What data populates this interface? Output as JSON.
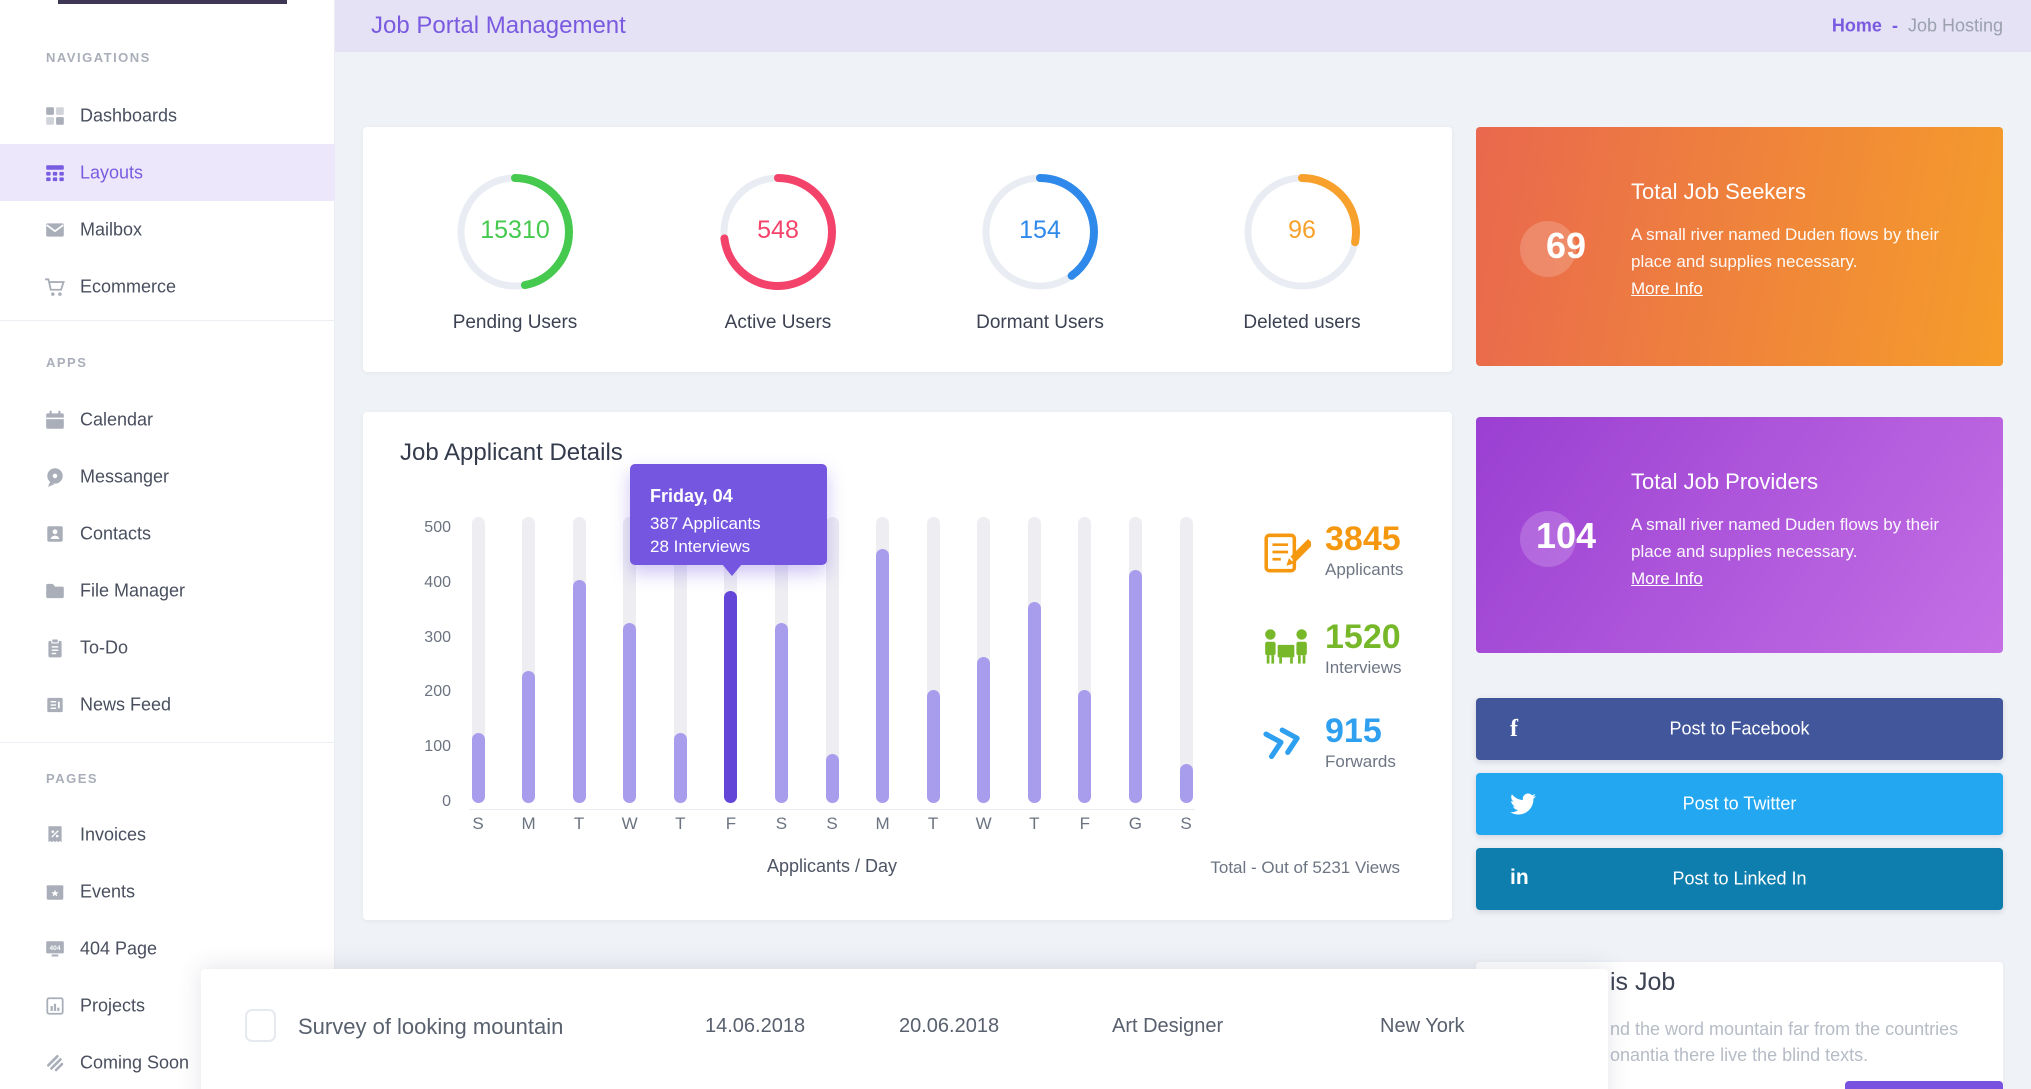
{
  "header": {
    "title": "Job Portal Management",
    "breadcrumb": {
      "home": "Home",
      "separator": "-",
      "current": "Job Hosting"
    }
  },
  "sidebar": {
    "sections": [
      {
        "label": "NAVIGATIONS",
        "items": [
          {
            "label": "Dashboards",
            "icon": "dashboards-icon",
            "active": false
          },
          {
            "label": "Layouts",
            "icon": "layouts-icon",
            "active": true
          },
          {
            "label": "Mailbox",
            "icon": "mailbox-icon",
            "active": false
          },
          {
            "label": "Ecommerce",
            "icon": "ecommerce-icon",
            "active": false
          }
        ]
      },
      {
        "label": "APPS",
        "items": [
          {
            "label": "Calendar",
            "icon": "calendar-icon"
          },
          {
            "label": "Messanger",
            "icon": "messanger-icon"
          },
          {
            "label": "Contacts",
            "icon": "contacts-icon"
          },
          {
            "label": "File Manager",
            "icon": "file-manager-icon"
          },
          {
            "label": "To-Do",
            "icon": "todo-icon"
          },
          {
            "label": "News Feed",
            "icon": "news-feed-icon"
          }
        ]
      },
      {
        "label": "PAGES",
        "items": [
          {
            "label": "Invoices",
            "icon": "invoices-icon"
          },
          {
            "label": "Events",
            "icon": "events-icon"
          },
          {
            "label": "404 Page",
            "icon": "404-page-icon"
          },
          {
            "label": "Projects",
            "icon": "projects-icon"
          },
          {
            "label": "Coming Soon",
            "icon": "coming-soon-icon"
          }
        ]
      }
    ]
  },
  "donut_card": {
    "items": [
      {
        "value": "15310",
        "label": "Pending Users",
        "color": "#45c94e",
        "percent": 47
      },
      {
        "value": "548",
        "label": "Active Users",
        "color": "#f4436b",
        "percent": 73
      },
      {
        "value": "154",
        "label": "Dormant Users",
        "color": "#2e89ea",
        "percent": 40
      },
      {
        "value": "96",
        "label": "Deleted users",
        "color": "#f7a12c",
        "percent": 28
      }
    ]
  },
  "chart_card": {
    "title": "Job Applicant Details",
    "tooltip": {
      "title": "Friday, 04",
      "line1": "387 Applicants",
      "line2": "28 Interviews"
    },
    "caption_x": "Applicants / Day",
    "caption_total": "Total - Out of 5231 Views",
    "side_stats": [
      {
        "value": "3845",
        "label": "Applicants",
        "color": "#f5980f",
        "icon": "applicants-icon"
      },
      {
        "value": "1520",
        "label": "Interviews",
        "color": "#76b82a",
        "icon": "interviews-icon"
      },
      {
        "value": "915",
        "label": "Forwards",
        "color": "#2f9ff0",
        "icon": "forwards-icon"
      }
    ]
  },
  "chart_data": {
    "type": "bar",
    "title": "Job Applicant Details",
    "categories": [
      "S",
      "M",
      "T",
      "W",
      "T",
      "F",
      "S",
      "S",
      "M",
      "T",
      "W",
      "T",
      "F",
      "G",
      "S"
    ],
    "values": [
      128,
      240,
      407,
      328,
      128,
      387,
      328,
      90,
      463,
      207,
      267,
      366,
      207,
      425,
      72
    ],
    "highlighted_index": 5,
    "highlighted_point": {
      "day": "Friday, 04",
      "applicants": 387,
      "interviews": 28
    },
    "xlabel": "Applicants / Day",
    "ylabel": "",
    "y_ticks": [
      0,
      100,
      200,
      300,
      400,
      500
    ],
    "ylim": [
      0,
      522
    ],
    "bar_color": "#a89ced",
    "highlight_color": "#6345d8",
    "track_color": "#ededf2",
    "grid": false,
    "note": "Total - Out of 5231 Views"
  },
  "seekers_card": {
    "badge": "69",
    "title": "Total Job Seekers",
    "body_line1": "A small river named Duden flows by their",
    "body_line2": "place and supplies necessary.",
    "more_label": "More Info",
    "gradient_from": "#e9684e",
    "gradient_to": "#f59d2a"
  },
  "providers_card": {
    "badge": "104",
    "title": "Total Job Providers",
    "body_line1": "A small river named Duden flows by their",
    "body_line2": "place and supplies necessary.",
    "more_label": "More Info",
    "gradient_from": "#9a3fd2",
    "gradient_to": "#c46fe5"
  },
  "social_buttons": [
    {
      "label": "Post to Facebook",
      "color": "#41569b",
      "icon": "facebook-icon"
    },
    {
      "label": "Post to Twitter",
      "color": "#22a7f0",
      "icon": "twitter-icon"
    },
    {
      "label": "Post to Linked In",
      "color": "#0e7eae",
      "icon": "linkedin-icon"
    }
  ],
  "bottom_row": {
    "title": "Survey of looking mountain",
    "date_from": "14.06.2018",
    "date_to": "20.06.2018",
    "role": "Art Designer",
    "location": "New York",
    "checked": false
  },
  "partial_card": {
    "heading_fragment": "is Job",
    "line1_fragment": "nd the word mountain far from the countries",
    "line2_fragment": "onantia there live the blind texts."
  }
}
